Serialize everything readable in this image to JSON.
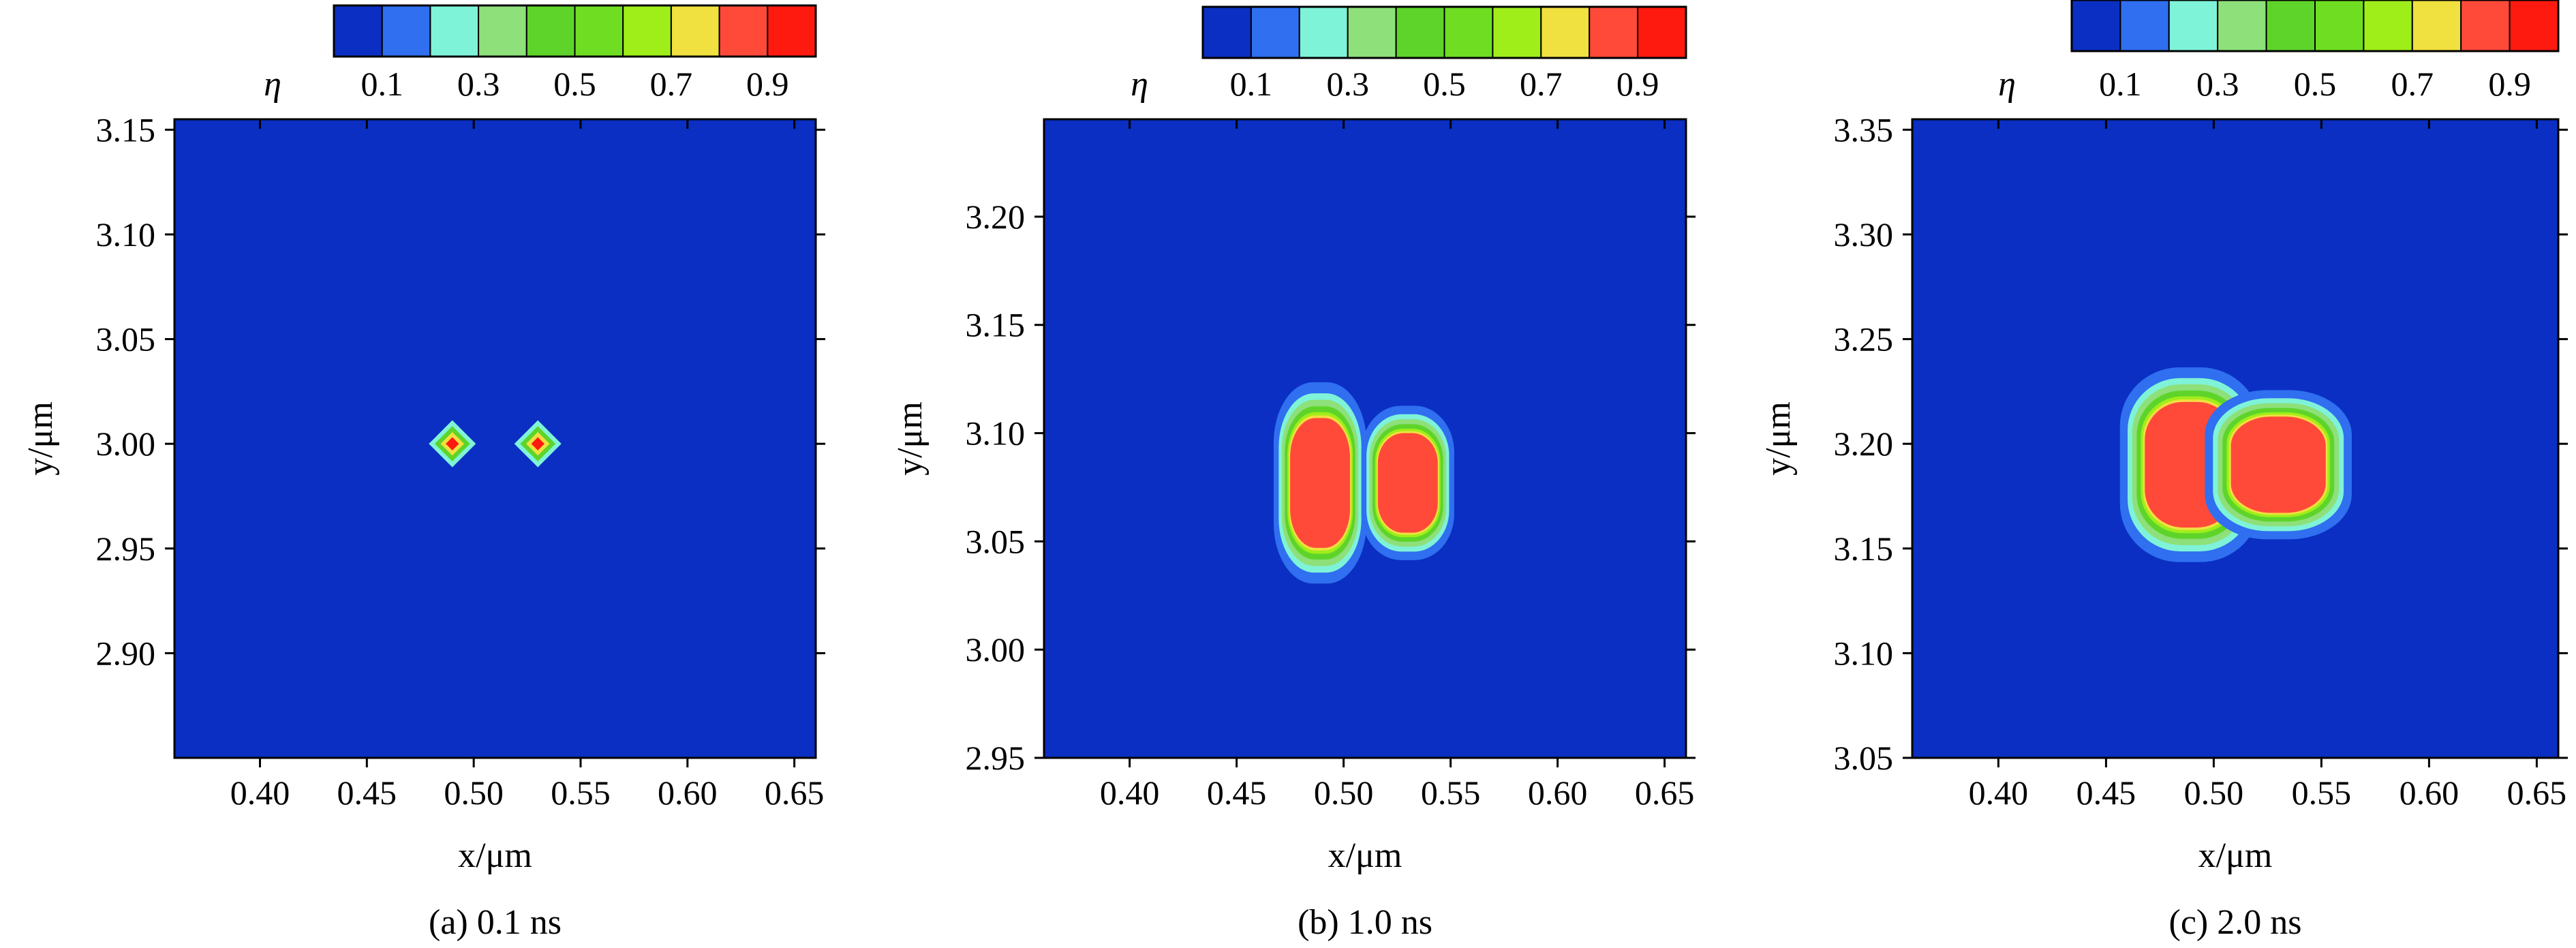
{
  "colorbar": {
    "symbol": "η",
    "tick_labels": [
      "0.1",
      "0.3",
      "0.5",
      "0.7",
      "0.9"
    ],
    "tick_values": [
      0.1,
      0.3,
      0.5,
      0.7,
      0.9
    ],
    "colors": [
      "#0a2fc2",
      "#2f6ff0",
      "#7ff3d8",
      "#8ee07a",
      "#5ed42a",
      "#6fde22",
      "#9fee1a",
      "#f0e040",
      "#ff4a3a",
      "#ff1a10"
    ]
  },
  "chart_data": [
    {
      "type": "heatmap",
      "caption": "(a) 0.1 ns",
      "xlabel": "x/μm",
      "ylabel": "y/μm",
      "xlim": [
        0.36,
        0.66
      ],
      "ylim": [
        2.85,
        3.155
      ],
      "xticks": [
        0.4,
        0.45,
        0.5,
        0.55,
        0.6,
        0.65
      ],
      "xtick_labels": [
        "0.40",
        "0.45",
        "0.50",
        "0.55",
        "0.60",
        "0.65"
      ],
      "yticks": [
        2.9,
        2.95,
        3.0,
        3.05,
        3.1,
        3.15
      ],
      "ytick_labels": [
        "2.90",
        "2.95",
        "3.00",
        "3.05",
        "3.10",
        "3.15"
      ],
      "background_value": 0.0,
      "features": [
        {
          "kind": "nucleus",
          "x": 0.49,
          "y": 3.0,
          "rx": 0.005,
          "ry": 0.005
        },
        {
          "kind": "nucleus",
          "x": 0.53,
          "y": 3.0,
          "rx": 0.005,
          "ry": 0.005
        }
      ]
    },
    {
      "type": "heatmap",
      "caption": "(b) 1.0 ns",
      "xlabel": "x/μm",
      "ylabel": "y/μm",
      "xlim": [
        0.36,
        0.66
      ],
      "ylim": [
        2.95,
        3.245
      ],
      "xticks": [
        0.4,
        0.45,
        0.5,
        0.55,
        0.6,
        0.65
      ],
      "xtick_labels": [
        "0.40",
        "0.45",
        "0.50",
        "0.55",
        "0.60",
        "0.65"
      ],
      "yticks": [
        2.95,
        3.0,
        3.05,
        3.1,
        3.15,
        3.2
      ],
      "ytick_labels": [
        "2.95",
        "3.00",
        "3.05",
        "3.10",
        "3.15",
        "3.20"
      ],
      "background_value": 0.0,
      "features": [
        {
          "kind": "grain",
          "x": 0.489,
          "y": 3.077,
          "rx": 0.014,
          "ry": 0.03
        },
        {
          "kind": "grain",
          "x": 0.53,
          "y": 3.077,
          "rx": 0.014,
          "ry": 0.023
        }
      ]
    },
    {
      "type": "heatmap",
      "caption": "(c) 2.0 ns",
      "xlabel": "x/μm",
      "ylabel": "y/μm",
      "xlim": [
        0.36,
        0.66
      ],
      "ylim": [
        3.05,
        3.355
      ],
      "xticks": [
        0.4,
        0.45,
        0.5,
        0.55,
        0.6,
        0.65
      ],
      "xtick_labels": [
        "0.40",
        "0.45",
        "0.50",
        "0.55",
        "0.60",
        "0.65"
      ],
      "yticks": [
        3.05,
        3.1,
        3.15,
        3.2,
        3.25,
        3.3,
        3.35
      ],
      "ytick_labels": [
        "3.05",
        "3.10",
        "3.15",
        "3.20",
        "3.25",
        "3.30",
        "3.35"
      ],
      "background_value": 0.0,
      "features": [
        {
          "kind": "grain",
          "x": 0.489,
          "y": 3.19,
          "rx": 0.021,
          "ry": 0.03
        },
        {
          "kind": "grain",
          "x": 0.53,
          "y": 3.19,
          "rx": 0.022,
          "ry": 0.023
        }
      ]
    }
  ]
}
